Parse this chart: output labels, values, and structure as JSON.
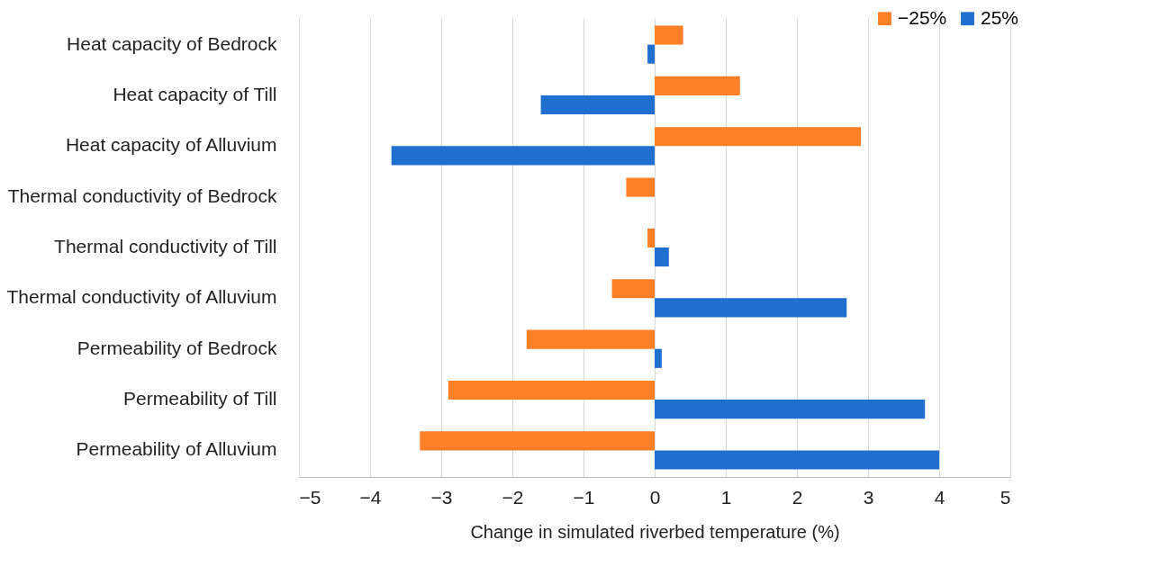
{
  "chart_data": {
    "type": "bar",
    "orientation": "horizontal",
    "xlabel": "Change in simulated riverbed temperature (%)",
    "categories": [
      "Heat capacity of Bedrock",
      "Heat capacity of Till",
      "Heat capacity of Alluvium",
      "Thermal conductivity of Bedrock",
      "Thermal conductivity of Till",
      "Thermal conductivity of Alluvium",
      "Permeability of Bedrock",
      "Permeability of Till",
      "Permeability of Alluvium"
    ],
    "series": [
      {
        "name": "−25%",
        "color": "#ff7f27",
        "values": [
          0.4,
          1.2,
          2.9,
          -0.4,
          -0.1,
          -0.6,
          -1.8,
          -2.9,
          -3.3
        ]
      },
      {
        "name": "25%",
        "color": "#1f6fcf",
        "values": [
          -0.1,
          -1.6,
          -3.7,
          0,
          0.2,
          2.7,
          0.1,
          3.8,
          4.0
        ]
      }
    ],
    "xlim": [
      -5,
      5
    ],
    "xticks": [
      {
        "value": -5,
        "label": "−5"
      },
      {
        "value": -4,
        "label": "−4"
      },
      {
        "value": -3,
        "label": "−3"
      },
      {
        "value": -2,
        "label": "−2"
      },
      {
        "value": -1,
        "label": "−1"
      },
      0,
      1,
      2,
      3,
      4,
      5
    ],
    "grid": "x",
    "legend": "top right"
  }
}
